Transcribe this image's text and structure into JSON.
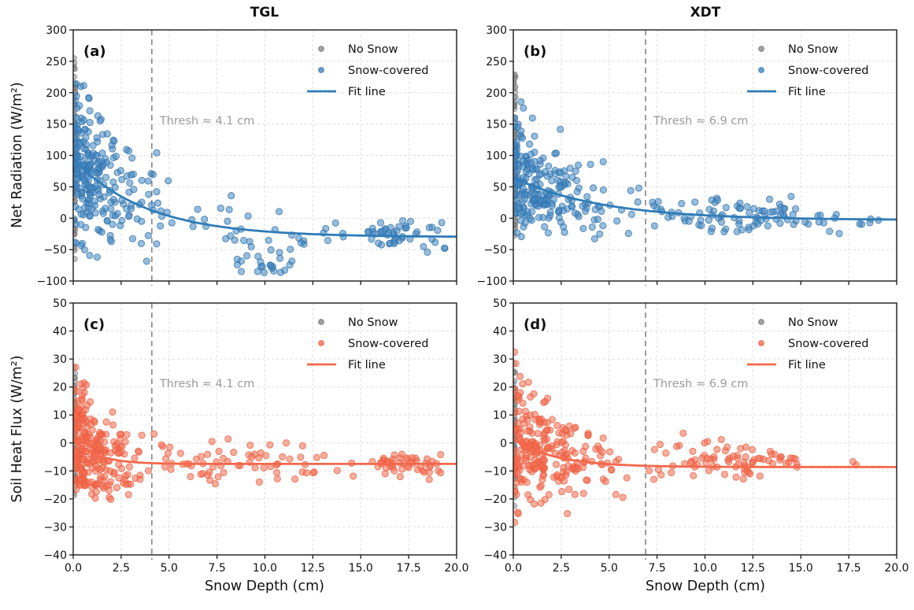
{
  "figure": {
    "background": "#ffffff",
    "column_titles": [
      "TGL",
      "XDT"
    ],
    "row_ylabels": [
      "Net Radiation (W/m²)",
      "Soil Heat Flux (W/m²)"
    ],
    "xlabel": "Snow Depth (cm)"
  },
  "legend": {
    "position": "upper right",
    "entries": [
      "No Snow",
      "Snow-covered",
      "Fit line"
    ]
  },
  "colors": {
    "gray_fill": "#8a8a8a",
    "gray_edge": "#6f6f6f",
    "blue_fill": "#3f87c1",
    "blue_edge": "#2f6ea6",
    "blue_line": "#2f7cb8",
    "salmon_fill": "#f46a4d",
    "salmon_edge": "#e85c40",
    "salmon_line": "#f4684c",
    "grid": "#dedede",
    "threshold": "#8c8c8c",
    "threshold_text": "#9b9b9b",
    "spine": "#1a1a1a",
    "tick_text": "#111111"
  },
  "chart_data": [
    {
      "id": "a",
      "type": "scatter",
      "panel_label": "(a)",
      "column": "TGL",
      "grid": true,
      "legend_position": "upper right",
      "point_color": "blue",
      "x": {
        "label": "Snow Depth (cm)",
        "lim": [
          0,
          20
        ],
        "ticks": [
          0,
          2.5,
          5,
          7.5,
          10,
          12.5,
          15,
          17.5,
          20
        ],
        "tick_labels": [
          "0.0",
          "2.5",
          "5.0",
          "7.5",
          "10.0",
          "12.5",
          "15.0",
          "17.5",
          "20.0"
        ],
        "show_tick_labels": false
      },
      "y": {
        "label": "Net Radiation (W/m²)",
        "lim": [
          -100,
          300
        ],
        "ticks": [
          300,
          250,
          200,
          150,
          100,
          50,
          0,
          -50,
          -100
        ],
        "tick_labels": [
          "300",
          "250",
          "200",
          "150",
          "100",
          "50",
          "0",
          "−50",
          "−100"
        ]
      },
      "threshold": {
        "x_cm": 4.1,
        "label": "Thresh ≈ 4.1 cm"
      },
      "fit": {
        "model": "y = a·exp(−x/b) + c",
        "a": 125,
        "b": 3.8,
        "c": -30
      },
      "series": [
        {
          "key": "no_snow",
          "name": "No Snow",
          "marker": "dot",
          "color": "gray"
        },
        {
          "key": "snow",
          "name": "Snow-covered",
          "marker": "dot",
          "color": "blue"
        },
        {
          "key": "fit",
          "name": "Fit line",
          "marker": "line",
          "color": "blue"
        }
      ],
      "scatter_gen": {
        "seed": 11,
        "clusters": [
          {
            "series": "no_snow",
            "n": 95,
            "x": {
              "dist": "uniform",
              "min": 0,
              "max": 0.12
            },
            "y": {
              "dist": "normal",
              "mean": 90,
              "sd": 85,
              "min": -65,
              "max": 255
            }
          },
          {
            "series": "snow",
            "n": 250,
            "x": {
              "dist": "exp",
              "scale": 1.4,
              "min": 0.05,
              "max": 12.4
            },
            "y": {
              "dist": "fit_normal",
              "sd0": 52,
              "decay": 5,
              "sdmin": 16,
              "min": -92,
              "max": 218
            }
          },
          {
            "series": "snow",
            "n": 30,
            "x": {
              "dist": "uniform",
              "min": 4.2,
              "max": 12.4
            },
            "y": {
              "dist": "fit_normal",
              "sd0": 0,
              "decay": 1,
              "sdmin": 26,
              "min": -70,
              "max": 60
            }
          },
          {
            "series": "snow",
            "n": 22,
            "x": {
              "dist": "normal",
              "mean": 9.6,
              "sd": 1.1,
              "min": 7.5,
              "max": 11.8
            },
            "y": {
              "dist": "uniform",
              "min": -88,
              "max": -48
            }
          },
          {
            "series": "snow",
            "n": 6,
            "x": {
              "dist": "uniform",
              "min": 12.6,
              "max": 15.2
            },
            "y": {
              "dist": "normal",
              "mean": -18,
              "sd": 10
            }
          },
          {
            "series": "snow",
            "n": 48,
            "x": {
              "dist": "normal",
              "mean": 17.4,
              "sd": 1.1,
              "min": 15.3,
              "max": 19.6
            },
            "y": {
              "dist": "normal",
              "mean": -24,
              "sd": 13,
              "min": -55,
              "max": 8
            }
          }
        ]
      }
    },
    {
      "id": "b",
      "type": "scatter",
      "panel_label": "(b)",
      "column": "XDT",
      "grid": true,
      "legend_position": "upper right",
      "point_color": "blue",
      "x": {
        "label": "Snow Depth (cm)",
        "lim": [
          0,
          20
        ],
        "ticks": [
          0,
          2.5,
          5,
          7.5,
          10,
          12.5,
          15,
          17.5,
          20
        ],
        "tick_labels": [
          "0.0",
          "2.5",
          "5.0",
          "7.5",
          "10.0",
          "12.5",
          "15.0",
          "17.5",
          "20.0"
        ],
        "show_tick_labels": false
      },
      "y": {
        "label": "Net Radiation (W/m²)",
        "lim": [
          -100,
          300
        ],
        "ticks": [
          300,
          250,
          200,
          150,
          100,
          50,
          0,
          -50,
          -100
        ],
        "tick_labels": [
          "300",
          "250",
          "200",
          "150",
          "100",
          "50",
          "0",
          "−50",
          "−100"
        ]
      },
      "threshold": {
        "x_cm": 6.9,
        "label": "Thresh ≈ 6.9 cm"
      },
      "fit": {
        "model": "y = a·exp(−x/b) + c",
        "a": 68,
        "b": 4.6,
        "c": -3
      },
      "series": [
        {
          "key": "no_snow",
          "name": "No Snow",
          "marker": "dot",
          "color": "gray"
        },
        {
          "key": "snow",
          "name": "Snow-covered",
          "marker": "dot",
          "color": "blue"
        },
        {
          "key": "fit",
          "name": "Fit line",
          "marker": "line",
          "color": "blue"
        }
      ],
      "scatter_gen": {
        "seed": 22,
        "clusters": [
          {
            "series": "no_snow",
            "n": 85,
            "x": {
              "dist": "uniform",
              "min": 0,
              "max": 0.12
            },
            "y": {
              "dist": "normal",
              "mean": 85,
              "sd": 85,
              "min": -28,
              "max": 252
            }
          },
          {
            "series": "snow",
            "n": 235,
            "x": {
              "dist": "exp",
              "scale": 1.9,
              "min": 0.05,
              "max": 7.2
            },
            "y": {
              "dist": "fit_normal",
              "sd0": 40,
              "decay": 5,
              "sdmin": 13,
              "min": -35,
              "max": 212
            }
          },
          {
            "series": "snow",
            "n": 28,
            "x": {
              "dist": "uniform",
              "min": 7.2,
              "max": 10.5
            },
            "y": {
              "dist": "fit_normal",
              "sd0": 0,
              "decay": 1,
              "sdmin": 16,
              "min": -25,
              "max": 55
            }
          },
          {
            "series": "snow",
            "n": 55,
            "x": {
              "dist": "uniform",
              "min": 10.5,
              "max": 14.8
            },
            "y": {
              "dist": "normal",
              "mean": 5,
              "sd": 16,
              "min": -22,
              "max": 48
            }
          },
          {
            "series": "snow",
            "n": 12,
            "x": {
              "dist": "uniform",
              "min": 15,
              "max": 18.2
            },
            "y": {
              "dist": "normal",
              "mean": -4,
              "sd": 9
            }
          },
          {
            "series": "snow",
            "n": 3,
            "x": {
              "dist": "uniform",
              "min": 18.5,
              "max": 19.9
            },
            "y": {
              "dist": "normal",
              "mean": -3,
              "sd": 5
            }
          }
        ]
      }
    },
    {
      "id": "c",
      "type": "scatter",
      "panel_label": "(c)",
      "column": "TGL",
      "grid": true,
      "legend_position": "upper right",
      "point_color": "salmon",
      "x": {
        "label": "Snow Depth (cm)",
        "lim": [
          0,
          20
        ],
        "ticks": [
          0,
          2.5,
          5,
          7.5,
          10,
          12.5,
          15,
          17.5,
          20
        ],
        "tick_labels": [
          "0.0",
          "2.5",
          "5.0",
          "7.5",
          "10.0",
          "12.5",
          "15.0",
          "17.5",
          "20.0"
        ],
        "show_tick_labels": true
      },
      "y": {
        "label": "Soil Heat Flux (W/m²)",
        "lim": [
          -40,
          50
        ],
        "ticks": [
          50,
          40,
          30,
          20,
          10,
          0,
          -10,
          -20,
          -30,
          -40
        ],
        "tick_labels": [
          "50",
          "40",
          "30",
          "20",
          "10",
          "0",
          "−10",
          "−20",
          "−30",
          "−40"
        ]
      },
      "threshold": {
        "x_cm": 4.1,
        "label": "Thresh ≈ 4.1 cm"
      },
      "fit": {
        "model": "y = a·exp(−x/b) + c",
        "a": 9,
        "b": 1.2,
        "c": -7.5
      },
      "series": [
        {
          "key": "no_snow",
          "name": "No Snow",
          "marker": "dot",
          "color": "gray"
        },
        {
          "key": "snow",
          "name": "Snow-covered",
          "marker": "dot",
          "color": "salmon"
        },
        {
          "key": "fit",
          "name": "Fit line",
          "marker": "line",
          "color": "salmon"
        }
      ],
      "scatter_gen": {
        "seed": 33,
        "clusters": [
          {
            "series": "no_snow",
            "n": 85,
            "x": {
              "dist": "uniform",
              "min": 0,
              "max": 0.1
            },
            "y": {
              "dist": "normal",
              "mean": 4,
              "sd": 11,
              "min": -22,
              "max": 39
            }
          },
          {
            "series": "snow",
            "n": 255,
            "x": {
              "dist": "exp",
              "scale": 1.15,
              "min": 0.05,
              "max": 4.4
            },
            "y": {
              "dist": "fit_normal",
              "sd0": 9,
              "decay": 2.5,
              "sdmin": 3.6,
              "min": -21,
              "max": 32
            }
          },
          {
            "series": "snow",
            "n": 65,
            "x": {
              "dist": "uniform",
              "min": 4.4,
              "max": 12.6
            },
            "y": {
              "dist": "normal",
              "mean": -7.3,
              "sd": 4.2,
              "min": -16,
              "max": 6
            }
          },
          {
            "series": "snow",
            "n": 5,
            "x": {
              "dist": "uniform",
              "min": 12.7,
              "max": 15.1
            },
            "y": {
              "dist": "normal",
              "mean": -7,
              "sd": 3
            }
          },
          {
            "series": "snow",
            "n": 48,
            "x": {
              "dist": "normal",
              "mean": 17.2,
              "sd": 1.1,
              "min": 15.2,
              "max": 19.4
            },
            "y": {
              "dist": "normal",
              "mean": -7.4,
              "sd": 2.4
            }
          }
        ]
      }
    },
    {
      "id": "d",
      "type": "scatter",
      "panel_label": "(d)",
      "column": "XDT",
      "grid": true,
      "legend_position": "upper right",
      "point_color": "salmon",
      "x": {
        "label": "Snow Depth (cm)",
        "lim": [
          0,
          20
        ],
        "ticks": [
          0,
          2.5,
          5,
          7.5,
          10,
          12.5,
          15,
          17.5,
          20
        ],
        "tick_labels": [
          "0.0",
          "2.5",
          "5.0",
          "7.5",
          "10.0",
          "12.5",
          "15.0",
          "17.5",
          "20.0"
        ],
        "show_tick_labels": true
      },
      "y": {
        "label": "Soil Heat Flux (W/m²)",
        "lim": [
          -40,
          50
        ],
        "ticks": [
          50,
          40,
          30,
          20,
          10,
          0,
          -10,
          -20,
          -30,
          -40
        ],
        "tick_labels": [
          "50",
          "40",
          "30",
          "20",
          "10",
          "0",
          "−10",
          "−20",
          "−30",
          "−40"
        ]
      },
      "threshold": {
        "x_cm": 6.9,
        "label": "Thresh ≈ 6.9 cm"
      },
      "fit": {
        "model": "y = a·exp(−x/b) + c",
        "a": 10,
        "b": 2.2,
        "c": -8.6
      },
      "series": [
        {
          "key": "no_snow",
          "name": "No Snow",
          "marker": "dot",
          "color": "gray"
        },
        {
          "key": "snow",
          "name": "Snow-covered",
          "marker": "dot",
          "color": "salmon"
        },
        {
          "key": "fit",
          "name": "Fit line",
          "marker": "line",
          "color": "salmon"
        }
      ],
      "scatter_gen": {
        "seed": 44,
        "clusters": [
          {
            "series": "no_snow",
            "n": 90,
            "x": {
              "dist": "uniform",
              "min": 0,
              "max": 0.1
            },
            "y": {
              "dist": "normal",
              "mean": 4,
              "sd": 12,
              "min": -26,
              "max": 36
            }
          },
          {
            "series": "snow",
            "n": 245,
            "x": {
              "dist": "exp",
              "scale": 1.7,
              "min": 0.05,
              "max": 7.1
            },
            "y": {
              "dist": "fit_normal",
              "sd0": 9.5,
              "decay": 3,
              "sdmin": 4.2,
              "min": -30,
              "max": 36
            }
          },
          {
            "series": "snow",
            "n": 30,
            "x": {
              "dist": "uniform",
              "min": 7.1,
              "max": 10.5
            },
            "y": {
              "dist": "normal",
              "mean": -6.5,
              "sd": 4.5,
              "min": -15,
              "max": 15
            }
          },
          {
            "series": "snow",
            "n": 50,
            "x": {
              "dist": "uniform",
              "min": 10.6,
              "max": 14.8
            },
            "y": {
              "dist": "normal",
              "mean": -6.5,
              "sd": 4,
              "min": -13,
              "max": 8
            }
          },
          {
            "series": "snow",
            "n": 2,
            "x": {
              "dist": "uniform",
              "min": 17.6,
              "max": 17.9
            },
            "y": {
              "dist": "normal",
              "mean": -8.5,
              "sd": 0.8
            }
          }
        ]
      }
    }
  ]
}
